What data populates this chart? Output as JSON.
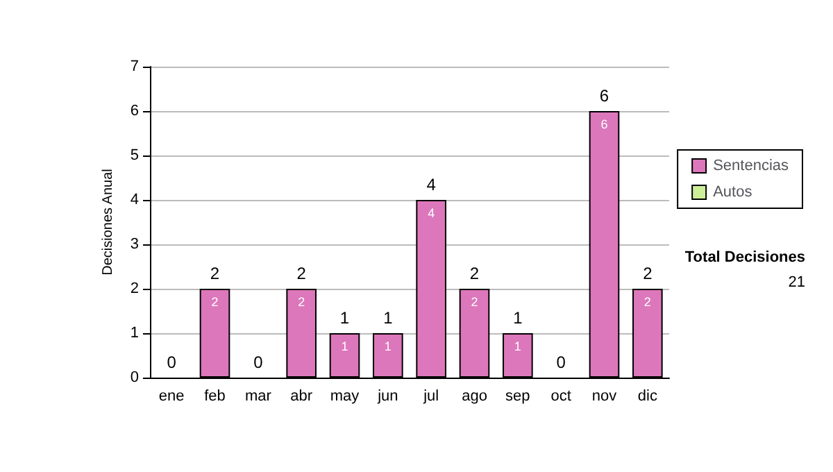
{
  "chart_data": {
    "type": "bar",
    "ylabel": "Decisiones Anual",
    "categories": [
      "ene",
      "feb",
      "mar",
      "abr",
      "may",
      "jun",
      "jul",
      "ago",
      "sep",
      "oct",
      "nov",
      "dic"
    ],
    "series": [
      {
        "name": "Sentencias",
        "color": "#dd77bb",
        "values": [
          0,
          2,
          0,
          2,
          1,
          1,
          4,
          2,
          1,
          0,
          6,
          2
        ],
        "value_labels": [
          null,
          "2",
          null,
          "2",
          "1",
          "1",
          "4",
          "2",
          "1",
          null,
          "6",
          "2"
        ]
      },
      {
        "name": "Autos",
        "color": "#ccee99",
        "values": [
          0,
          0,
          0,
          0,
          0,
          0,
          0,
          0,
          0,
          0,
          0,
          0
        ]
      }
    ],
    "stacked": true,
    "totals": [
      "0",
      "2",
      "0",
      "2",
      "1",
      "1",
      "4",
      "2",
      "1",
      "0",
      "6",
      "2"
    ],
    "ylim": [
      0,
      7
    ],
    "yticks": [
      0,
      1,
      2,
      3,
      4,
      5,
      6,
      7
    ],
    "grid": "y",
    "legend": "right",
    "annotations": [
      "Total Decisiones",
      "21"
    ]
  }
}
